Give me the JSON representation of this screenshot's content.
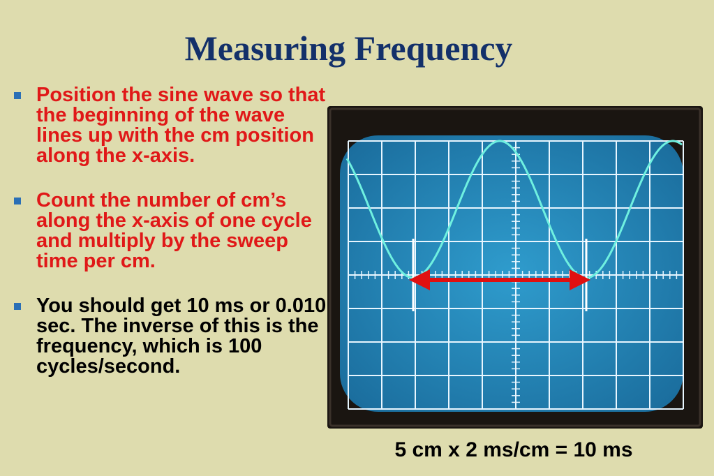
{
  "title": "Measuring Frequency",
  "bullets": [
    {
      "text": "Position the sine wave so that the beginning of the wave lines up with the cm position along the x-axis.",
      "color": "#e01818"
    },
    {
      "text": "Count the number of cm’s along the x-axis of one cycle and multiply by the sweep time per cm.",
      "color": "#e01818"
    },
    {
      "text": "You should get 10 ms or 0.010 sec.  The inverse of this is the frequency, which is 100 cycles/second.",
      "color": "#000000"
    }
  ],
  "caption": "5 cm x 2 ms/cm = 10 ms",
  "colors": {
    "background": "#dedcae",
    "title": "#13306a",
    "bullet_marker": "#2a6fb6",
    "screen": "#2a8fc0",
    "trace": "#6ff0e0",
    "arrow": "#e01010"
  },
  "icons": {
    "bullet": "square-bullet",
    "arrow": "double-headed-arrow"
  }
}
